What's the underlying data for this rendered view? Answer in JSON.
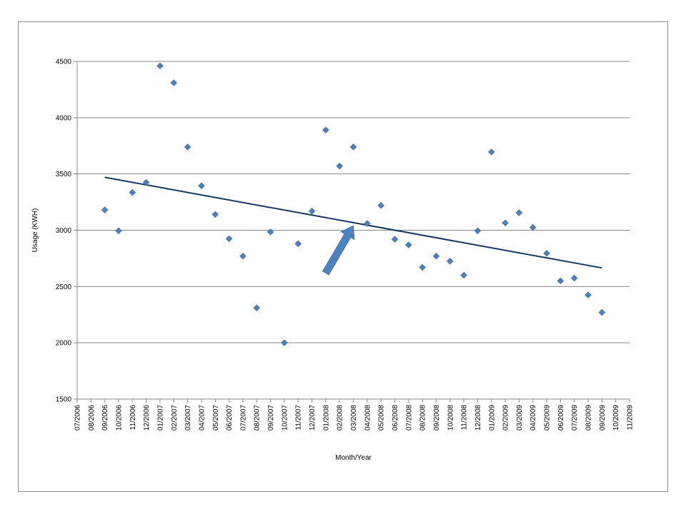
{
  "chart_data": {
    "type": "scatter",
    "title": "",
    "xlabel": "Month/Year",
    "ylabel": "Usage (KWH)",
    "ylim": [
      1500,
      4500
    ],
    "y_ticks": [
      1500,
      2000,
      2500,
      3000,
      3500,
      4000,
      4500
    ],
    "grid": "horizontal",
    "legend": "none",
    "x_categories": [
      "07/2006",
      "08/2006",
      "09/2006",
      "10/2006",
      "11/2006",
      "12/2006",
      "01/2007",
      "02/2007",
      "03/2007",
      "04/2007",
      "05/2007",
      "06/2007",
      "07/2007",
      "08/2007",
      "09/2007",
      "10/2007",
      "11/2007",
      "12/2007",
      "01/2008",
      "02/2008",
      "03/2008",
      "04/2008",
      "05/2008",
      "06/2008",
      "07/2008",
      "08/2008",
      "09/2008",
      "10/2008",
      "11/2008",
      "12/2008",
      "01/2009",
      "02/2009",
      "03/2009",
      "04/2009",
      "05/2009",
      "06/2009",
      "07/2009",
      "08/2009",
      "09/2009",
      "10/2009",
      "11/2009"
    ],
    "series": [
      {
        "marker": "diamond",
        "color": "#4f81bd",
        "points": [
          {
            "x": "09/2006",
            "y": 3180
          },
          {
            "x": "10/2006",
            "y": 2995
          },
          {
            "x": "11/2006",
            "y": 3335
          },
          {
            "x": "12/2006",
            "y": 3425
          },
          {
            "x": "01/2007",
            "y": 4460
          },
          {
            "x": "02/2007",
            "y": 4310
          },
          {
            "x": "03/2007",
            "y": 3740
          },
          {
            "x": "04/2007",
            "y": 3395
          },
          {
            "x": "05/2007",
            "y": 3140
          },
          {
            "x": "06/2007",
            "y": 2925
          },
          {
            "x": "07/2007",
            "y": 2770
          },
          {
            "x": "08/2007",
            "y": 2310
          },
          {
            "x": "09/2007",
            "y": 2985
          },
          {
            "x": "10/2007",
            "y": 2000
          },
          {
            "x": "11/2007",
            "y": 2880
          },
          {
            "x": "12/2007",
            "y": 3170
          },
          {
            "x": "01/2008",
            "y": 3890
          },
          {
            "x": "02/2008",
            "y": 3570
          },
          {
            "x": "03/2008",
            "y": 3740
          },
          {
            "x": "04/2008",
            "y": 3060
          },
          {
            "x": "05/2008",
            "y": 3220
          },
          {
            "x": "06/2008",
            "y": 2920
          },
          {
            "x": "07/2008",
            "y": 2870
          },
          {
            "x": "08/2008",
            "y": 2670
          },
          {
            "x": "09/2008",
            "y": 2770
          },
          {
            "x": "10/2008",
            "y": 2725
          },
          {
            "x": "11/2008",
            "y": 2600
          },
          {
            "x": "12/2008",
            "y": 2995
          },
          {
            "x": "01/2009",
            "y": 3695
          },
          {
            "x": "02/2009",
            "y": 3065
          },
          {
            "x": "03/2009",
            "y": 3155
          },
          {
            "x": "04/2009",
            "y": 3025
          },
          {
            "x": "05/2009",
            "y": 2795
          },
          {
            "x": "06/2009",
            "y": 2550
          },
          {
            "x": "07/2009",
            "y": 2575
          },
          {
            "x": "08/2009",
            "y": 2425
          },
          {
            "x": "09/2009",
            "y": 2270
          }
        ]
      }
    ],
    "trendline": {
      "type": "linear",
      "color": "#17375e",
      "from": {
        "x": "09/2006",
        "y": 3470
      },
      "to": {
        "x": "09/2009",
        "y": 2665
      }
    },
    "annotation": {
      "type": "arrow",
      "color": "#4f81bd",
      "from": {
        "x": "01/2008",
        "y": 2620
      },
      "to": {
        "x": "03/2008",
        "y": 3040
      }
    }
  }
}
